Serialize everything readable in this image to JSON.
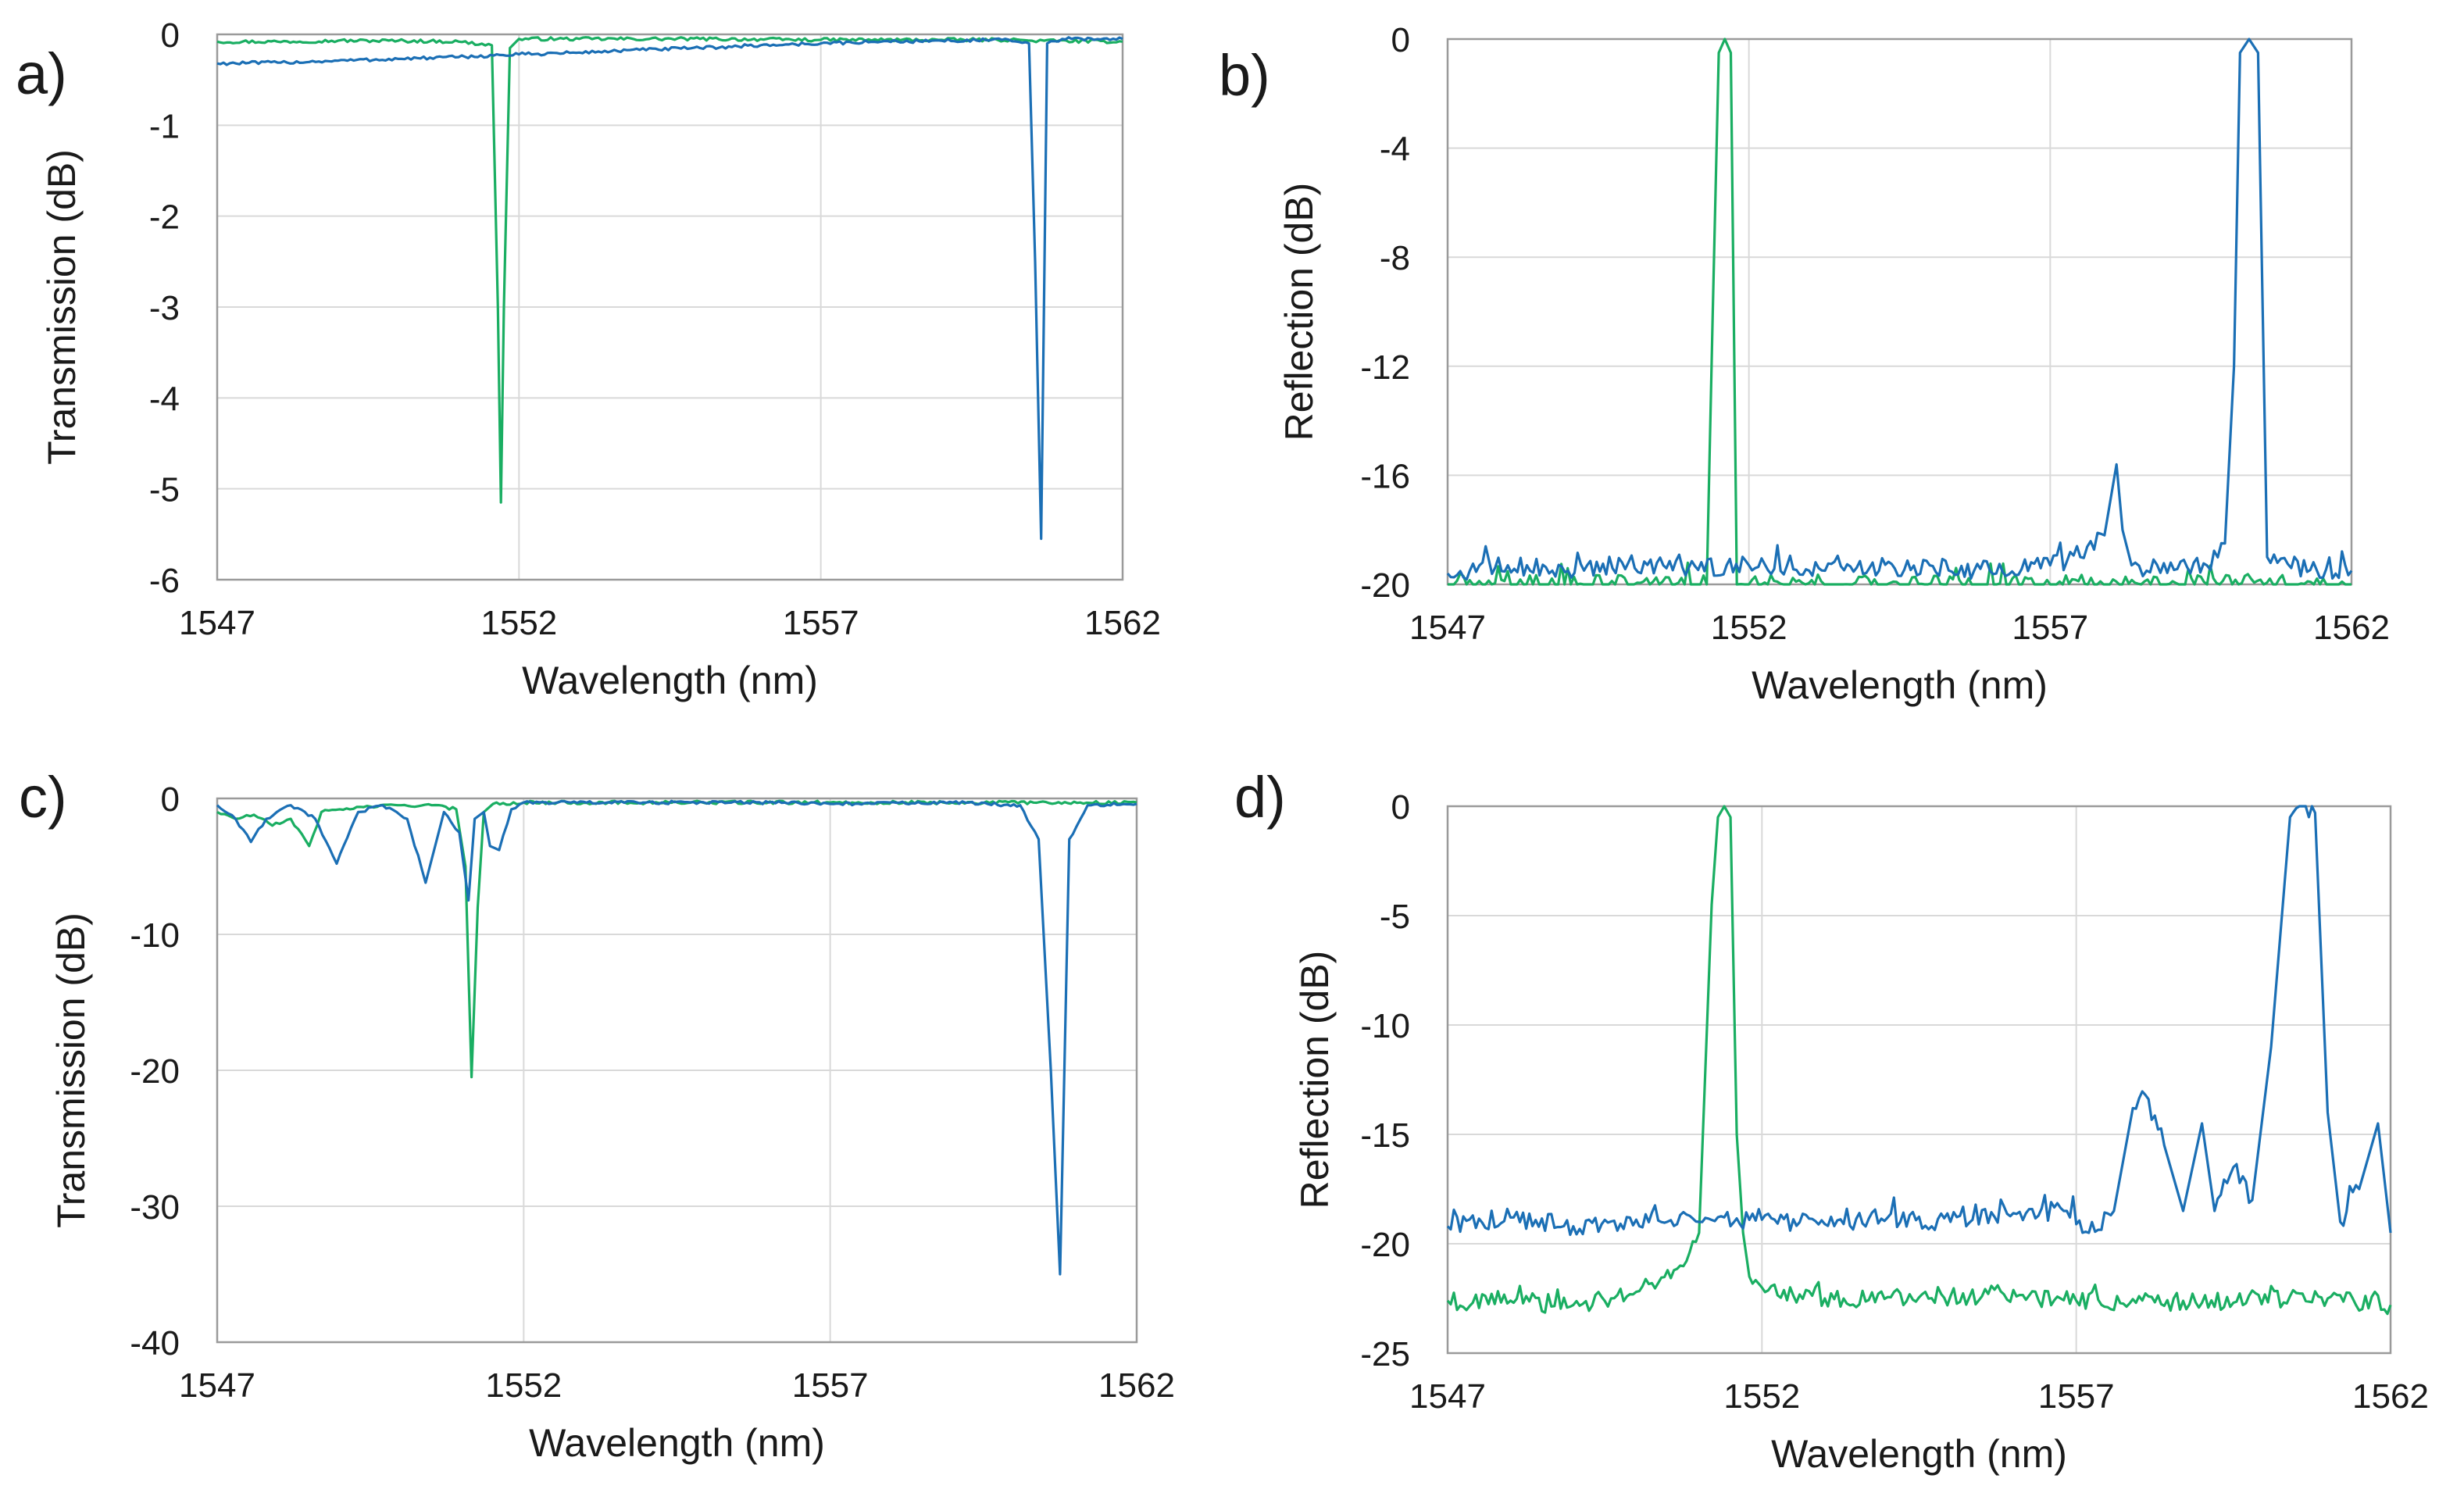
{
  "figure": {
    "colors": {
      "green": "#1aae62",
      "blue": "#1b6fb5",
      "grid": "#d9d9d9",
      "frame": "#9a9a9a"
    }
  },
  "chart_data": [
    {
      "panel": "a)",
      "type": "line",
      "xlabel": "Wavelength (nm)",
      "ylabel": "Transmission (dB)",
      "xlim": [
        1547,
        1562
      ],
      "ylim": [
        -6,
        0
      ],
      "xticks": [
        1547,
        1552,
        1557,
        1562
      ],
      "yticks": [
        0,
        -1,
        -2,
        -3,
        -4,
        -5,
        -6
      ],
      "grid": true,
      "series": [
        {
          "name": "green",
          "color": "#1aae62",
          "x": [
            1547,
            1548,
            1549,
            1550,
            1551,
            1551.55,
            1551.65,
            1551.7,
            1551.75,
            1551.85,
            1552,
            1553,
            1555,
            1557,
            1559,
            1560.3,
            1560.5,
            1560.7,
            1562
          ],
          "y": [
            -0.08,
            -0.08,
            -0.07,
            -0.07,
            -0.08,
            -0.12,
            -3.0,
            -5.15,
            -3.0,
            -0.15,
            -0.05,
            -0.05,
            -0.05,
            -0.06,
            -0.06,
            -0.06,
            -0.07,
            -0.07,
            -0.08
          ]
        },
        {
          "name": "blue",
          "color": "#1b6fb5",
          "x": [
            1547,
            1548,
            1549,
            1550,
            1551,
            1552,
            1553,
            1554,
            1555,
            1556,
            1557,
            1558,
            1559,
            1560,
            1560.45,
            1560.55,
            1560.65,
            1560.75,
            1561,
            1562
          ],
          "y": [
            -0.32,
            -0.31,
            -0.29,
            -0.27,
            -0.25,
            -0.22,
            -0.2,
            -0.17,
            -0.15,
            -0.12,
            -0.1,
            -0.08,
            -0.07,
            -0.06,
            -0.1,
            -2.5,
            -5.55,
            -0.1,
            -0.05,
            -0.05
          ]
        }
      ]
    },
    {
      "panel": "b)",
      "type": "line",
      "xlabel": "Wavelength (nm)",
      "ylabel": "Reflection (dB)",
      "xlim": [
        1547,
        1562
      ],
      "ylim": [
        -20,
        0
      ],
      "xticks": [
        1547,
        1552,
        1557,
        1562
      ],
      "yticks": [
        0,
        -4,
        -8,
        -12,
        -16,
        -20
      ],
      "grid": true,
      "series": [
        {
          "name": "green",
          "color": "#1aae62",
          "x": [
            1547,
            1551.3,
            1551.4,
            1551.5,
            1551.6,
            1551.7,
            1551.8,
            1552,
            1562
          ],
          "y": [
            -20,
            -20,
            -10,
            -0.5,
            0,
            -0.5,
            -20,
            -20,
            -20
          ]
        },
        {
          "name": "blue",
          "color": "#1b6fb5",
          "x": [
            1547,
            1548,
            1549,
            1550,
            1551,
            1552,
            1553,
            1554,
            1555,
            1556,
            1557,
            1557.5,
            1557.9,
            1558.1,
            1558.2,
            1558.35,
            1558.6,
            1559,
            1559.6,
            1559.9,
            1560.05,
            1560.15,
            1560.3,
            1560.45,
            1560.6,
            1561,
            1562
          ],
          "y": [
            -19.6,
            -19.3,
            -19.5,
            -19.2,
            -19.4,
            -19.3,
            -19.5,
            -19.4,
            -19.3,
            -19.5,
            -19.3,
            -19.0,
            -18.2,
            -15.6,
            -18.0,
            -19.3,
            -19.5,
            -19.2,
            -19.3,
            -18.5,
            -12.0,
            -0.5,
            0,
            -0.5,
            -19.0,
            -19.4,
            -19.5
          ]
        }
      ]
    },
    {
      "panel": "c)",
      "type": "line",
      "xlabel": "Wavelength (nm)",
      "ylabel": "Transmission (dB)",
      "xlim": [
        1547,
        1562
      ],
      "ylim": [
        -40,
        0
      ],
      "xticks": [
        1547,
        1552,
        1557,
        1562
      ],
      "yticks": [
        0,
        -10,
        -20,
        -30,
        -40
      ],
      "grid": true,
      "series": [
        {
          "name": "green",
          "color": "#1aae62",
          "x": [
            1547,
            1547.3,
            1547.6,
            1547.9,
            1548.2,
            1548.5,
            1548.7,
            1549,
            1549.5,
            1550,
            1550.5,
            1550.9,
            1551.05,
            1551.15,
            1551.25,
            1551.35,
            1551.5,
            1552,
            1554,
            1557,
            1562
          ],
          "y": [
            -1.0,
            -1.5,
            -1.2,
            -2.0,
            -1.5,
            -3.5,
            -1.0,
            -0.8,
            -0.6,
            -0.5,
            -0.5,
            -0.8,
            -5.0,
            -20.5,
            -8.0,
            -1.0,
            -0.4,
            -0.3,
            -0.3,
            -0.3,
            -0.3
          ]
        },
        {
          "name": "blue",
          "color": "#1b6fb5",
          "x": [
            1547,
            1547.3,
            1547.55,
            1547.8,
            1548.2,
            1548.6,
            1548.95,
            1549.3,
            1549.7,
            1550.1,
            1550.4,
            1550.7,
            1550.95,
            1551.1,
            1551.2,
            1551.35,
            1551.45,
            1551.6,
            1551.8,
            1552,
            1554,
            1556,
            1557,
            1559,
            1560.1,
            1560.4,
            1560.6,
            1560.75,
            1560.9,
            1561.2,
            1562
          ],
          "y": [
            -0.5,
            -1.5,
            -3.2,
            -1.5,
            -0.5,
            -1.5,
            -4.8,
            -1.0,
            -0.5,
            -1.5,
            -6.2,
            -1.0,
            -2.5,
            -7.5,
            -1.5,
            -1.0,
            -3.5,
            -3.8,
            -0.8,
            -0.3,
            -0.3,
            -0.3,
            -0.4,
            -0.3,
            -0.5,
            -3.0,
            -20.0,
            -35.0,
            -3.0,
            -0.5,
            -0.4
          ]
        }
      ]
    },
    {
      "panel": "d)",
      "type": "line",
      "xlabel": "Wavelength (nm)",
      "ylabel": "Reflection (dB)",
      "xlim": [
        1547,
        1562
      ],
      "ylim": [
        -25,
        0
      ],
      "xticks": [
        1547,
        1552,
        1557,
        1562
      ],
      "yticks": [
        0,
        -5,
        -10,
        -15,
        -20,
        -25
      ],
      "grid": true,
      "series": [
        {
          "name": "green",
          "color": "#1aae62",
          "x": [
            1547,
            1548,
            1549,
            1550,
            1550.7,
            1551.0,
            1551.2,
            1551.3,
            1551.4,
            1551.5,
            1551.6,
            1551.7,
            1551.8,
            1552,
            1553,
            1555,
            1557,
            1559,
            1561,
            1562
          ],
          "y": [
            -22.6,
            -22.6,
            -22.8,
            -22.2,
            -21.0,
            -19.5,
            -4.5,
            -0.5,
            0,
            -0.5,
            -15.0,
            -19.5,
            -21.5,
            -22.0,
            -22.5,
            -22.4,
            -22.6,
            -22.7,
            -22.5,
            -22.8
          ]
        },
        {
          "name": "blue",
          "color": "#1b6fb5",
          "x": [
            1547,
            1548,
            1549,
            1550,
            1551,
            1552,
            1553,
            1554,
            1555,
            1556,
            1556.8,
            1557.2,
            1557.6,
            1557.9,
            1558.1,
            1558.4,
            1558.7,
            1559.0,
            1559.2,
            1559.5,
            1559.8,
            1560.1,
            1560.4,
            1560.6,
            1560.8,
            1561.0,
            1561.2,
            1561.5,
            1561.8,
            1562
          ],
          "y": [
            -19.2,
            -18.8,
            -19.2,
            -18.9,
            -19.0,
            -18.9,
            -19.1,
            -18.8,
            -19.0,
            -18.6,
            -18.5,
            -19.5,
            -18.5,
            -13.8,
            -13.2,
            -15.5,
            -18.5,
            -14.5,
            -18.5,
            -16.5,
            -18.0,
            -11.0,
            -0.5,
            0,
            -0.3,
            -14.0,
            -19.0,
            -17.5,
            -14.5,
            -19.5
          ]
        }
      ]
    }
  ]
}
